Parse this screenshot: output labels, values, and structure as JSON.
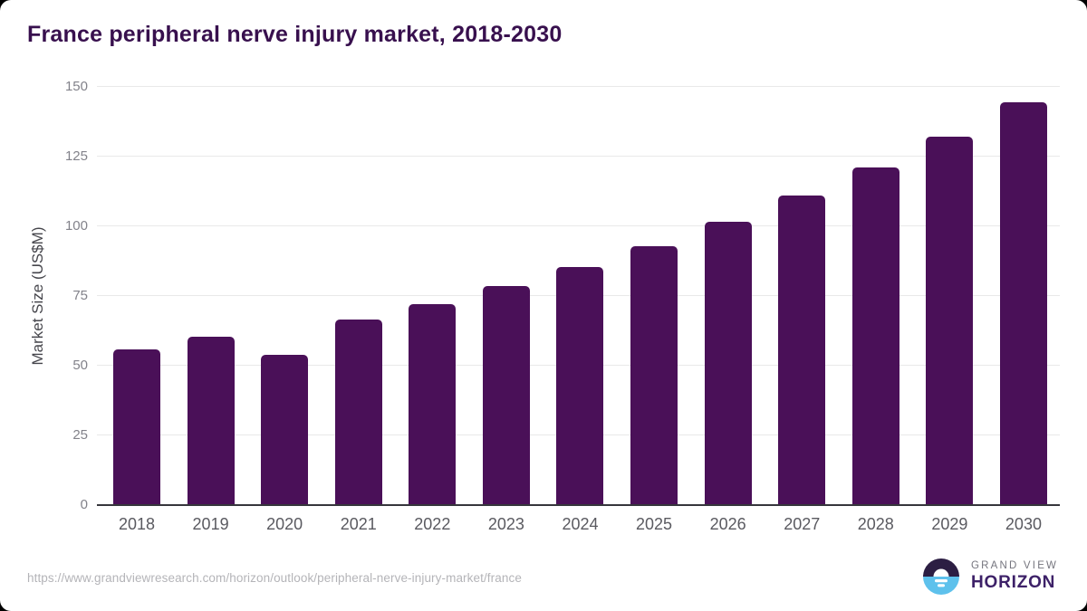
{
  "header": {
    "title": "France peripheral nerve injury market, 2018-2030"
  },
  "chart_data": {
    "type": "bar",
    "title": "France peripheral nerve injury market, 2018-2030",
    "categories": [
      "2018",
      "2019",
      "2020",
      "2021",
      "2022",
      "2023",
      "2024",
      "2025",
      "2026",
      "2027",
      "2028",
      "2029",
      "2030"
    ],
    "values": [
      56,
      60.5,
      54,
      66.5,
      72,
      78.5,
      85.5,
      93,
      101.5,
      111,
      121,
      132,
      144.5
    ],
    "xlabel": "",
    "ylabel": "Market Size (US$M)",
    "ylim": [
      0,
      150
    ],
    "yticks": [
      0,
      25,
      50,
      75,
      100,
      125,
      150
    ],
    "grid": "horizontal",
    "legend_position": "none",
    "bar_color": "#4a1058"
  },
  "colors": {
    "title_text": "#38104e",
    "bar": "#4a1058",
    "axis_line": "#36363c",
    "gridline": "#e9e9e9",
    "ytick_text": "#82828a",
    "xlabel_text": "#5a5a60",
    "url_text": "#b4b4b8",
    "logo_icon_top": "#2c1e43",
    "logo_icon_bottom": "#5ec1ec",
    "logo_grand_view_text": "#75757e",
    "logo_horizon_text": "#3d2168"
  },
  "footer": {
    "source_url": "https://www.grandviewresearch.com/horizon/outlook/peripheral-nerve-injury-market/france",
    "logo": {
      "icon": "horizon-sunrise-icon",
      "top_text": "GRAND VIEW",
      "bottom_text": "HORIZON"
    }
  }
}
